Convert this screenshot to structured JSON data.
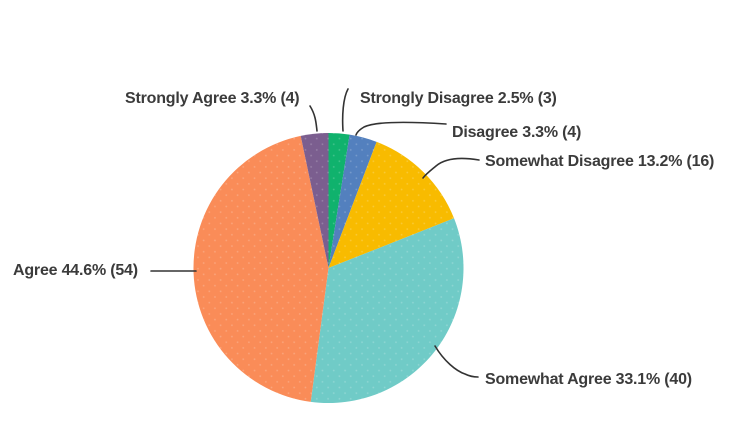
{
  "chart_data": {
    "type": "pie",
    "title": "",
    "direction": "clockwise",
    "start_angle_deg": 0,
    "legend_position": "callout-labels",
    "label_format": "{label} {percent}% ({count})",
    "slices": [
      {
        "label": "Strongly Disagree",
        "percent": 2.5,
        "count": 3,
        "color": "#10B26D",
        "display": "Strongly Disagree 2.5% (3)"
      },
      {
        "label": "Disagree",
        "percent": 3.3,
        "count": 4,
        "color": "#5380BE",
        "display": "Disagree 3.3% (4)"
      },
      {
        "label": "Somewhat Disagree",
        "percent": 13.2,
        "count": 16,
        "color": "#F8BB00",
        "display": "Somewhat Disagree 13.2% (16)"
      },
      {
        "label": "Somewhat Agree",
        "percent": 33.1,
        "count": 40,
        "color": "#70CBC7",
        "display": "Somewhat Agree 33.1% (40)"
      },
      {
        "label": "Agree",
        "percent": 44.6,
        "count": 54,
        "color": "#FA8C58",
        "display": "Agree 44.6% (54)"
      },
      {
        "label": "Strongly Agree",
        "percent": 3.3,
        "count": 4,
        "color": "#7B5E8F",
        "display": "Strongly Agree 3.3% (4)"
      }
    ],
    "leader_line_color": "#333333",
    "label_text_color": "#3b3b3b"
  }
}
